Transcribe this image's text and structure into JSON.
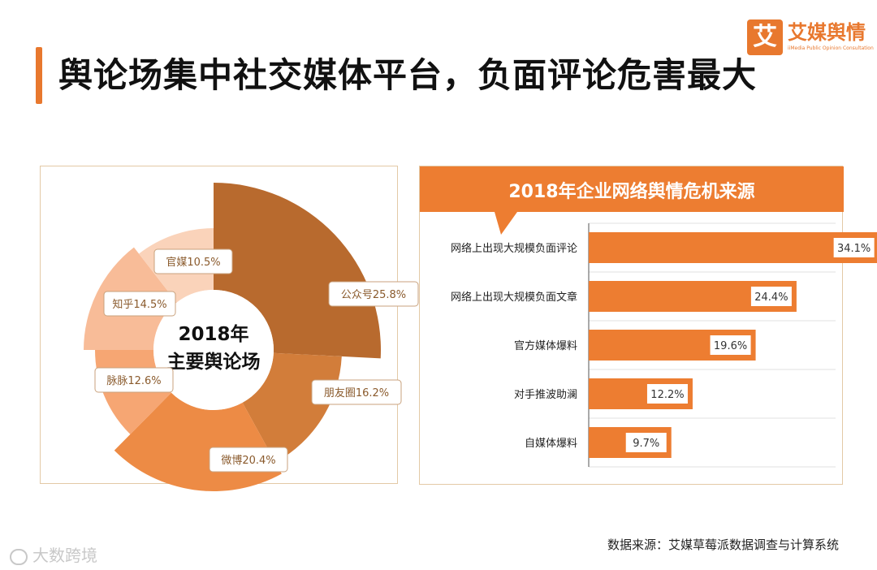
{
  "page": {
    "title": "舆论场集中社交媒体平台，负面评论危害最大",
    "source": "数据来源：艾媒草莓派数据调查与计算系统",
    "watermark": "大数跨境"
  },
  "logo": {
    "mark": "艾",
    "name": "艾媒舆情",
    "subtitle": "iiMedia Public Opinion Consultation"
  },
  "colors": {
    "accent": "#e8782e",
    "bar": "#ed7d31",
    "title_band": "#ed7d31"
  },
  "chart_data": [
    {
      "type": "pie",
      "title": "",
      "center_label": [
        "2018年",
        "主要舆论场"
      ],
      "slices": [
        {
          "label": "公众号",
          "value": 25.8,
          "display": "公众号25.8%",
          "color": "#b86a2e"
        },
        {
          "label": "朋友圈",
          "value": 16.2,
          "display": "朋友圈16.2%",
          "color": "#d27d3a"
        },
        {
          "label": "微博",
          "value": 20.4,
          "display": "微博20.4%",
          "color": "#ed8b45"
        },
        {
          "label": "脉脉",
          "value": 12.6,
          "display": "脉脉12.6%",
          "color": "#f6a673"
        },
        {
          "label": "知乎",
          "value": 14.5,
          "display": "知乎14.5%",
          "color": "#f8bc98"
        },
        {
          "label": "官媒",
          "value": 10.5,
          "display": "官媒10.5%",
          "color": "#fad3ba"
        }
      ]
    },
    {
      "type": "bar",
      "orientation": "horizontal",
      "title": "2018年企业网络舆情危机来源",
      "categories": [
        "网络上出现大规模负面评论",
        "网络上出现大规模负面文章",
        "官方媒体爆料",
        "对手推波助澜",
        "自媒体爆料"
      ],
      "values": [
        34.1,
        24.4,
        19.6,
        12.2,
        9.7
      ],
      "value_labels": [
        "34.1%",
        "24.4%",
        "19.6%",
        "12.2%",
        "9.7%"
      ],
      "xlim": [
        0,
        40
      ],
      "grid": true
    }
  ]
}
